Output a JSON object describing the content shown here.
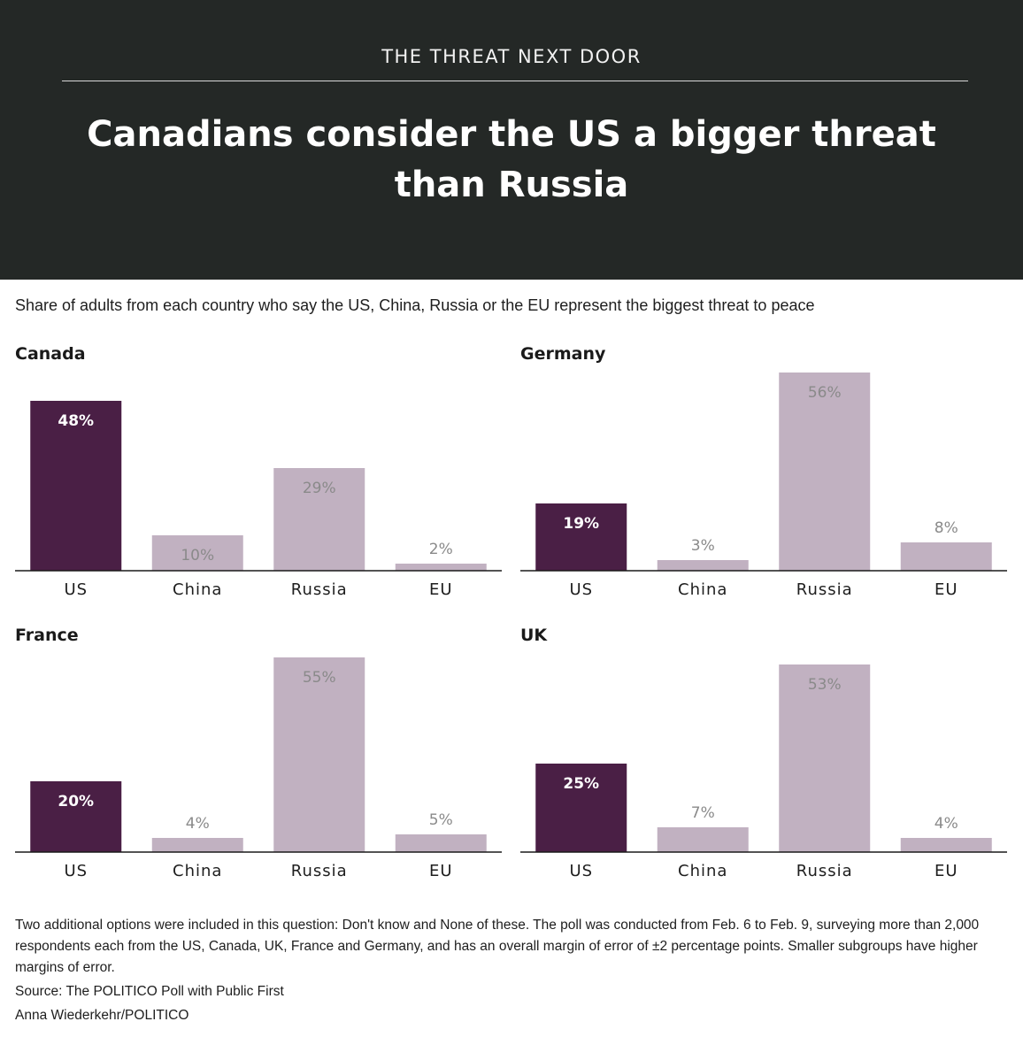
{
  "header": {
    "kicker": "THE THREAT NEXT DOOR",
    "title": "Canadians consider the US a bigger threat than Russia"
  },
  "subtitle": "Share of adults from each country who say the US, China, Russia or the EU represent the biggest threat to peace",
  "colors": {
    "header_bg": "#242826",
    "highlight": "#4a1f45",
    "muted": "#c1b1c1",
    "label_on_highlight": "#ffffff",
    "label_on_muted": "#8a8a8a"
  },
  "chart_data": [
    {
      "type": "bar",
      "title": "Canada",
      "categories": [
        "US",
        "China",
        "Russia",
        "EU"
      ],
      "values": [
        48,
        10,
        29,
        2
      ],
      "labels": [
        "48%",
        "10%",
        "29%",
        "2%"
      ],
      "highlight": "US",
      "ylim": [
        0,
        56
      ]
    },
    {
      "type": "bar",
      "title": "Germany",
      "categories": [
        "US",
        "China",
        "Russia",
        "EU"
      ],
      "values": [
        19,
        3,
        56,
        8
      ],
      "labels": [
        "19%",
        "3%",
        "56%",
        "8%"
      ],
      "highlight": "US",
      "ylim": [
        0,
        56
      ]
    },
    {
      "type": "bar",
      "title": "France",
      "categories": [
        "US",
        "China",
        "Russia",
        "EU"
      ],
      "values": [
        20,
        4,
        55,
        5
      ],
      "labels": [
        "20%",
        "4%",
        "55%",
        "5%"
      ],
      "highlight": "US",
      "ylim": [
        0,
        56
      ]
    },
    {
      "type": "bar",
      "title": "UK",
      "categories": [
        "US",
        "China",
        "Russia",
        "EU"
      ],
      "values": [
        25,
        7,
        53,
        4
      ],
      "labels": [
        "25%",
        "7%",
        "53%",
        "4%"
      ],
      "highlight": "US",
      "ylim": [
        0,
        56
      ]
    }
  ],
  "notes": {
    "methodology": "Two additional options were included in this question: Don't know and None of these. The poll was conducted from Feb. 6 to Feb. 9, surveying more than 2,000 respondents each from the US, Canada, UK, France and Germany, and has an overall margin of error of ±2 percentage points. Smaller subgroups have higher margins of error.",
    "source": "Source: The POLITICO Poll with Public First",
    "credit": "Anna Wiederkehr/POLITICO"
  }
}
